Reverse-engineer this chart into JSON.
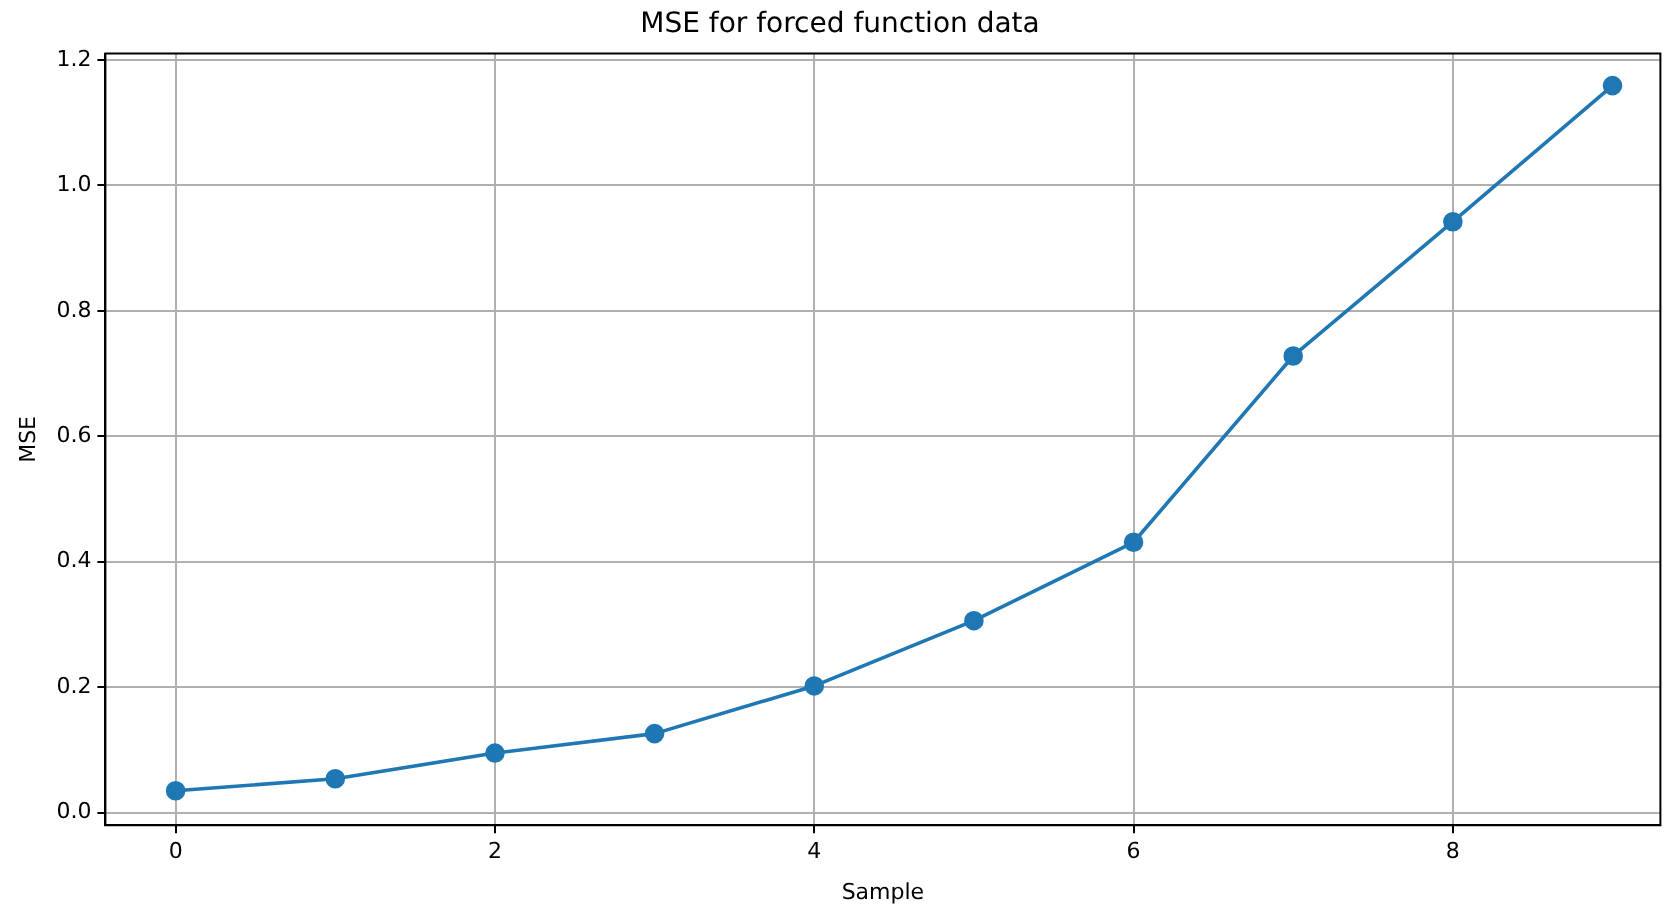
{
  "chart_data": {
    "type": "line",
    "title": "MSE for forced function data",
    "xlabel": "Sample",
    "ylabel": "MSE",
    "x": [
      0,
      1,
      2,
      3,
      4,
      5,
      6,
      7,
      8,
      9
    ],
    "series": [
      {
        "color": "#1f77b4",
        "values": [
          0.035,
          0.054,
          0.095,
          0.126,
          0.202,
          0.306,
          0.431,
          0.728,
          0.942,
          1.159
        ]
      }
    ],
    "xlim": [
      -0.44,
      9.3
    ],
    "xticks": [
      0,
      2,
      4,
      6,
      8
    ],
    "ylim": [
      -0.02,
      1.21
    ],
    "yticks": [
      {
        "value": 0,
        "label": "0.0"
      },
      {
        "value": 0.2,
        "label": "0.2"
      },
      {
        "value": 0.4,
        "label": "0.4"
      },
      {
        "value": 0.6,
        "label": "0.6"
      },
      {
        "value": 0.8,
        "label": "0.8"
      },
      {
        "value": 1,
        "label": "1.0"
      },
      {
        "value": 1.2,
        "label": "1.2"
      }
    ],
    "grid": true,
    "legend": false,
    "marker": "circle",
    "line_style": "solid"
  }
}
